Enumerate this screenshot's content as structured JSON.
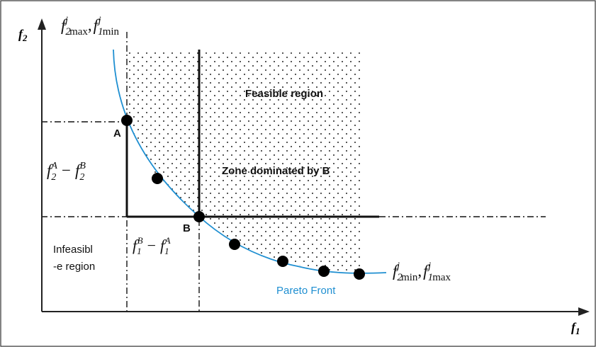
{
  "axes": {
    "y_label": "f",
    "y_label_sub": "2",
    "x_label": "f",
    "x_label_sub": "1"
  },
  "regions": {
    "feasible": "Feasible region",
    "dominated": "Zone dominated by B",
    "infeasible_line1": "Infeasibl",
    "infeasible_line2": "-e region"
  },
  "curve": {
    "label": "Pareto Front",
    "color": "#1f8fd1"
  },
  "points": {
    "a_label": "A",
    "b_label": "B"
  },
  "formulas": {
    "top_left": {
      "f": "f",
      "sub1": "2",
      "sup1": "j",
      "sub1b": "max",
      "sep": ",",
      "sub2": "1",
      "sup2": "j",
      "sub2b": "min"
    },
    "bottom_right": {
      "f": "f",
      "sub1": "2",
      "sup1": "j",
      "sub1b": "min",
      "sep": ",",
      "sub2": "1",
      "sup2": "j",
      "sub2b": "max"
    },
    "vertical_diff": {
      "f": "f",
      "sub": "2",
      "sup_a": "A",
      "minus": "−",
      "sup_b": "B"
    },
    "horizontal_diff": {
      "f": "f",
      "sub": "1",
      "sup_b": "B",
      "minus": "−",
      "sup_a": "A"
    }
  }
}
